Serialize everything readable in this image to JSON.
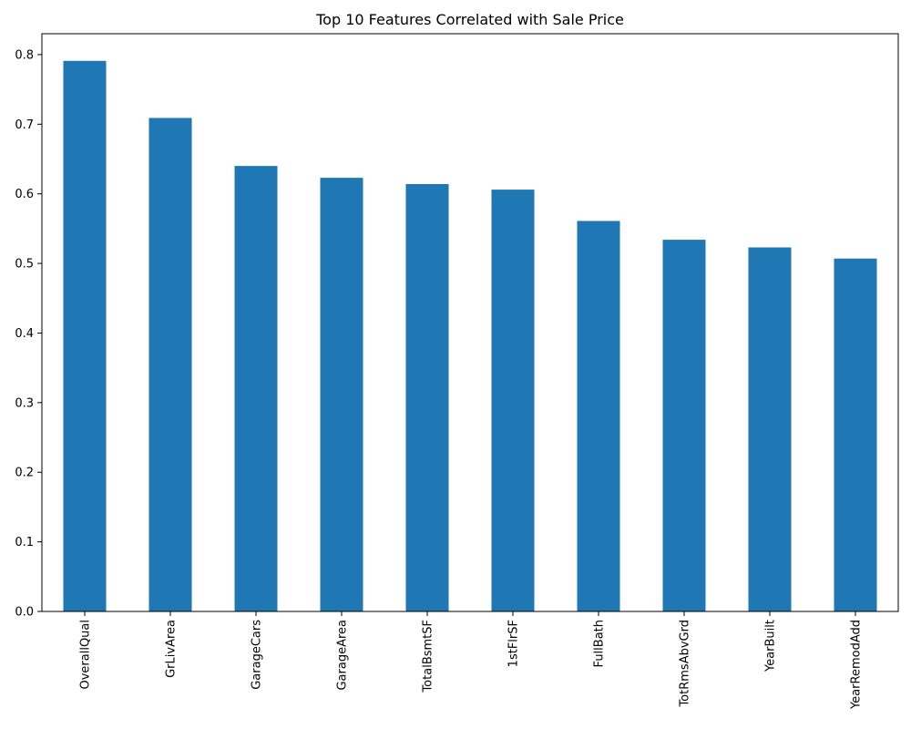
{
  "chart_data": {
    "type": "bar",
    "title": "Top 10 Features Correlated with Sale Price",
    "xlabel": "",
    "ylabel": "",
    "categories": [
      "OverallQual",
      "GrLivArea",
      "GarageCars",
      "GarageArea",
      "TotalBsmtSF",
      "1stFlrSF",
      "FullBath",
      "TotRmsAbvGrd",
      "YearBuilt",
      "YearRemodAdd"
    ],
    "values": [
      0.791,
      0.709,
      0.64,
      0.623,
      0.614,
      0.606,
      0.561,
      0.534,
      0.523,
      0.507
    ],
    "ylim": [
      0,
      0.83
    ],
    "yticks": [
      0.0,
      0.1,
      0.2,
      0.3,
      0.4,
      0.5,
      0.6,
      0.7,
      0.8
    ],
    "ytick_labels": [
      "0.0",
      "0.1",
      "0.2",
      "0.3",
      "0.4",
      "0.5",
      "0.6",
      "0.7",
      "0.8"
    ],
    "bar_color": "#1f77b4",
    "grid": false,
    "legend": "none"
  }
}
